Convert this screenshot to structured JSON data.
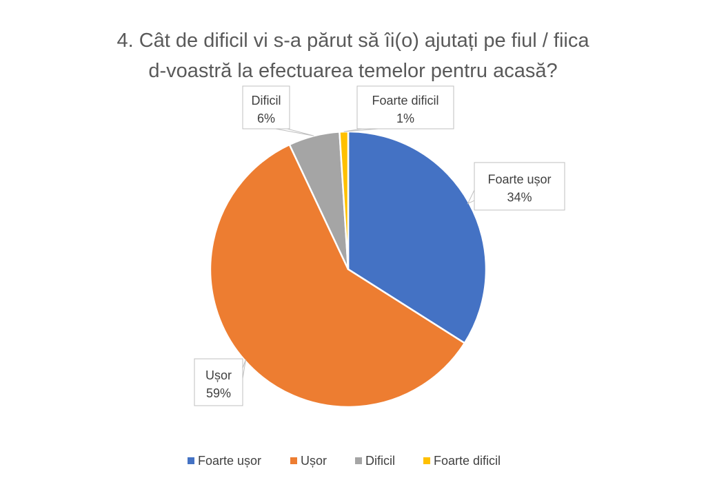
{
  "chart_data": {
    "type": "pie",
    "title": [
      "4. Cât de dificil vi s-a părut să îi(o) ajutați pe fiul / fiica",
      "d-voastră la efectuarea temelor pentru acasă?"
    ],
    "slices": [
      {
        "name": "Foarte ușor",
        "value": 34,
        "label": "34%",
        "color": "#4472C4"
      },
      {
        "name": "Ușor",
        "value": 59,
        "label": "59%",
        "color": "#ED7D31"
      },
      {
        "name": "Dificil",
        "value": 6,
        "label": "6%",
        "color": "#A5A5A5"
      },
      {
        "name": "Foarte dificil",
        "value": 1,
        "label": "1%",
        "color": "#FFC000"
      }
    ],
    "start_angle": "12 o'clock, clockwise",
    "legend_position": "bottom",
    "data_labels": "callouts"
  }
}
